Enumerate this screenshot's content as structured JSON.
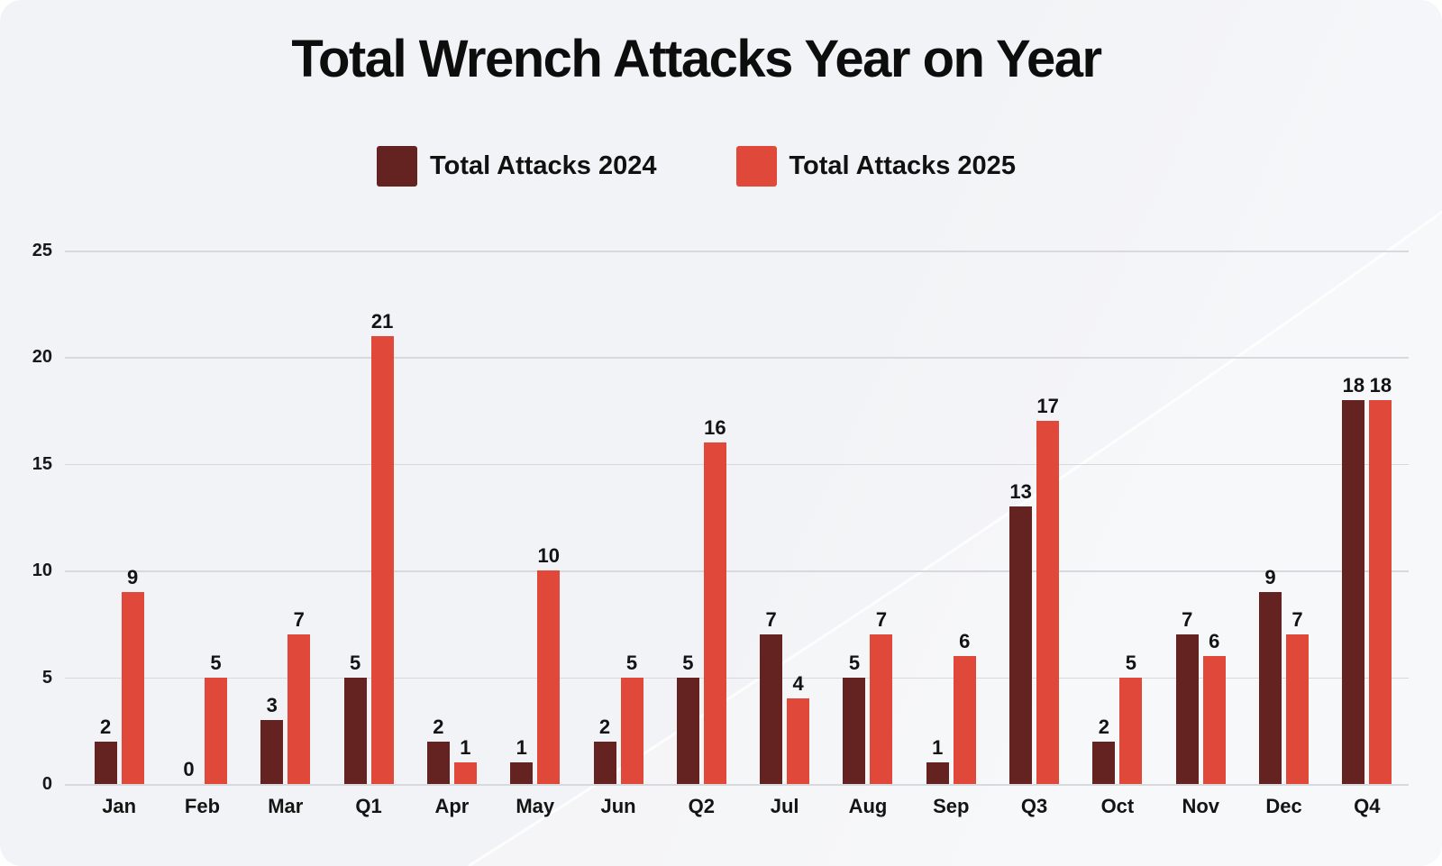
{
  "title": "Total Wrench Attacks Year on Year",
  "legend": {
    "items": [
      {
        "label": "Total Attacks 2024",
        "color": "#642220"
      },
      {
        "label": "Total Attacks 2025",
        "color": "#e0483a"
      }
    ]
  },
  "chart_data": {
    "type": "bar",
    "title": "Total Wrench Attacks Year on Year",
    "categories": [
      "Jan",
      "Feb",
      "Mar",
      "Q1",
      "Apr",
      "May",
      "Jun",
      "Q2",
      "Jul",
      "Aug",
      "Sep",
      "Q3",
      "Oct",
      "Nov",
      "Dec",
      "Q4"
    ],
    "series": [
      {
        "name": "Total Attacks 2024",
        "color": "#642220",
        "values": [
          2,
          0,
          3,
          5,
          2,
          1,
          2,
          5,
          7,
          5,
          1,
          13,
          2,
          7,
          9,
          18
        ]
      },
      {
        "name": "Total Attacks 2025",
        "color": "#e0483a",
        "values": [
          9,
          5,
          7,
          21,
          1,
          10,
          5,
          16,
          4,
          7,
          6,
          17,
          5,
          6,
          7,
          18
        ]
      }
    ],
    "xlabel": "",
    "ylabel": "",
    "ylim": [
      0,
      25
    ],
    "yticks": [
      0,
      5,
      10,
      15,
      20,
      25
    ],
    "grid": true,
    "legend_position": "top",
    "value_labels": true,
    "background": "#f2f3f6",
    "gridline_color": "#d8d9dc"
  }
}
